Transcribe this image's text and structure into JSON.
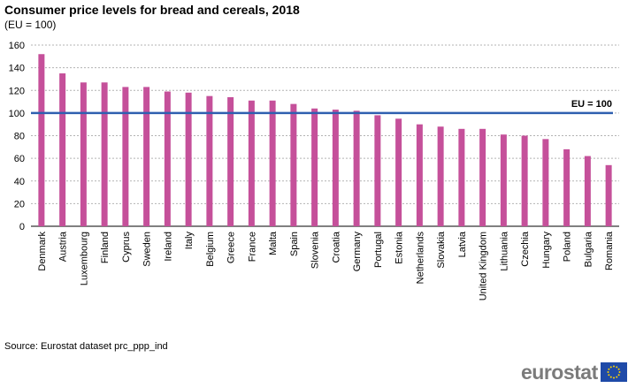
{
  "chart_data": {
    "type": "bar",
    "title": "Consumer price levels for bread and cereals, 2018",
    "subtitle": "(EU = 100)",
    "categories": [
      "Denmark",
      "Austria",
      "Luxembourg",
      "Finland",
      "Cyprus",
      "Sweden",
      "Ireland",
      "Italy",
      "Belgium",
      "Greece",
      "France",
      "Malta",
      "Spain",
      "Slovenia",
      "Croatia",
      "Germany",
      "Portugal",
      "Estonia",
      "Netherlands",
      "Slovakia",
      "Latvia",
      "United Kingdom",
      "Lithuania",
      "Czechia",
      "Hungary",
      "Poland",
      "Bulgaria",
      "Romania"
    ],
    "values": [
      152,
      135,
      127,
      127,
      123,
      123,
      119,
      118,
      115,
      114,
      111,
      111,
      108,
      104,
      103,
      102,
      98,
      95,
      90,
      88,
      86,
      86,
      81,
      80,
      77,
      68,
      62,
      54
    ],
    "yticks": [
      0,
      20,
      40,
      60,
      80,
      100,
      120,
      140,
      160
    ],
    "ylim": [
      0,
      160
    ],
    "xlabel": "",
    "ylabel": "",
    "grid": true,
    "bar_color": "#c5509a",
    "reference_line": {
      "value": 100,
      "label": "EU = 100",
      "color": "#2f5fb0"
    }
  },
  "source": "Source: Eurostat dataset prc_ppp_ind",
  "logo": {
    "text": "eurostat"
  }
}
